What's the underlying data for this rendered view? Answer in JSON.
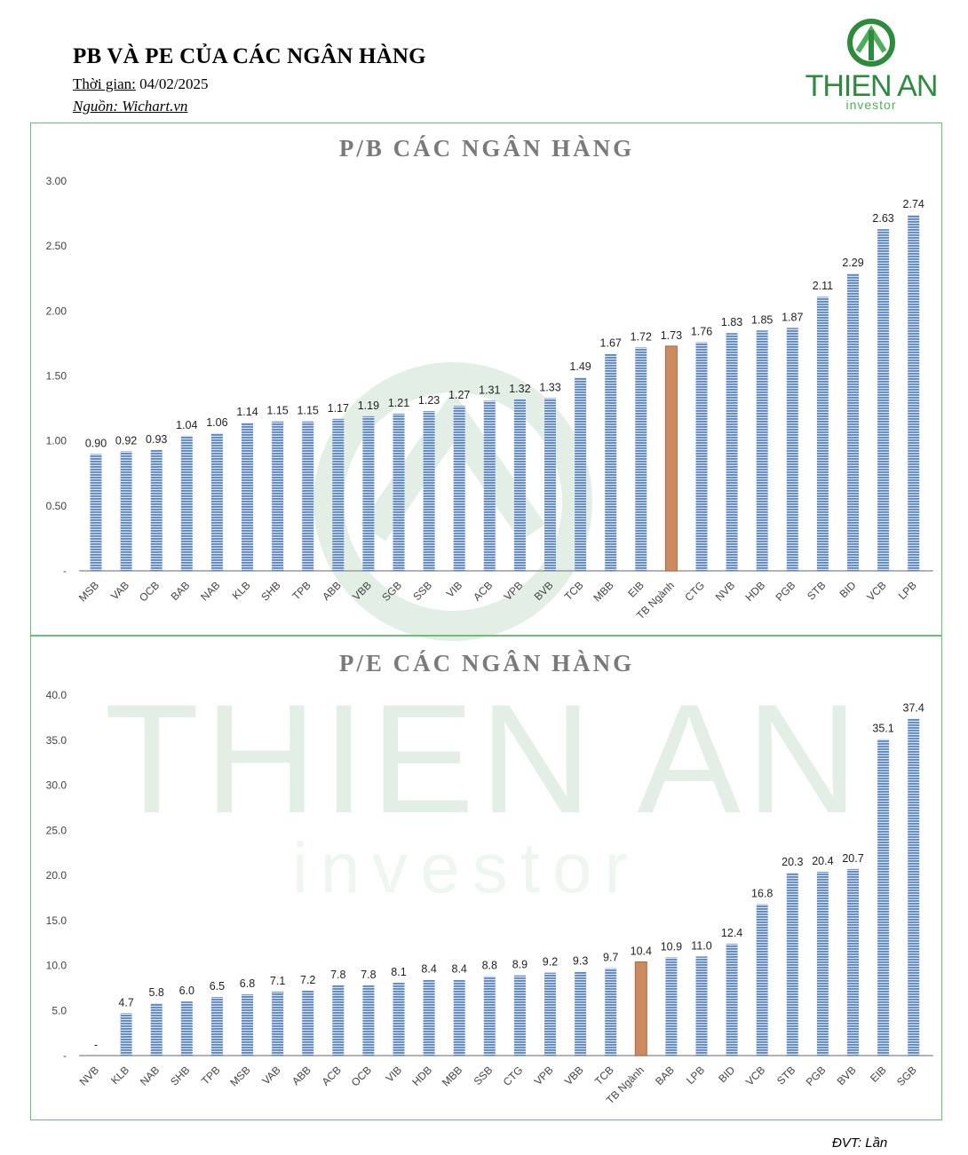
{
  "header": {
    "title": "PB VÀ PE CỦA CÁC NGÂN HÀNG",
    "time_label": "Thời gian:",
    "time_value": "04/02/2025",
    "source_label": "Nguồn:",
    "source_value": "Wichart.vn"
  },
  "logo": {
    "word": "THIEN AN",
    "sub": "investor"
  },
  "watermark": {
    "word": "THIEN AN",
    "sub": "investor"
  },
  "footer": {
    "unit": "ĐVT: Lần"
  },
  "colors": {
    "bar": "#5b85c8",
    "highlight": "#cd8a5e",
    "frame": "#6bbf7a",
    "brand": "#2e8b3e"
  },
  "chart_data": [
    {
      "type": "bar",
      "title": "P/B CÁC NGÂN HÀNG",
      "categories": [
        "MSB",
        "VAB",
        "OCB",
        "BAB",
        "NAB",
        "KLB",
        "SHB",
        "TPB",
        "ABB",
        "VBB",
        "SGB",
        "SSB",
        "VIB",
        "ACB",
        "VPB",
        "BVB",
        "TCB",
        "MBB",
        "EIB",
        "TB Ngành",
        "CTG",
        "NVB",
        "HDB",
        "PGB",
        "STB",
        "BID",
        "VCB",
        "LPB"
      ],
      "values": [
        0.9,
        0.92,
        0.93,
        1.04,
        1.06,
        1.14,
        1.15,
        1.15,
        1.17,
        1.19,
        1.21,
        1.23,
        1.27,
        1.31,
        1.32,
        1.33,
        1.49,
        1.67,
        1.72,
        1.73,
        1.76,
        1.83,
        1.85,
        1.87,
        2.11,
        2.29,
        2.63,
        2.74
      ],
      "value_labels": [
        "0.90",
        "0.92",
        "0.93",
        "1.04",
        "1.06",
        "1.14",
        "1.15",
        "1.15",
        "1.17",
        "1.19",
        "1.21",
        "1.23",
        "1.27",
        "1.31",
        "1.32",
        "1.33",
        "1.49",
        "1.67",
        "1.72",
        "1.73",
        "1.76",
        "1.83",
        "1.85",
        "1.87",
        "2.11",
        "2.29",
        "2.63",
        "2.74"
      ],
      "highlight_category": "TB Ngành",
      "ylim": [
        0,
        3
      ],
      "y_ticks": [
        "-",
        "0.50",
        "1.00",
        "1.50",
        "2.00",
        "2.50",
        "3.00"
      ],
      "y_tick_values": [
        0,
        0.5,
        1,
        1.5,
        2,
        2.5,
        3
      ],
      "grid": false
    },
    {
      "type": "bar",
      "title": "P/E CÁC NGÂN HÀNG",
      "categories": [
        "NVB",
        "KLB",
        "NAB",
        "SHB",
        "TPB",
        "MSB",
        "VAB",
        "ABB",
        "ACB",
        "OCB",
        "VIB",
        "HDB",
        "MBB",
        "SSB",
        "CTG",
        "VPB",
        "VBB",
        "TCB",
        "TB Ngành",
        "BAB",
        "LPB",
        "BID",
        "VCB",
        "STB",
        "PGB",
        "BVB",
        "EIB",
        "SGB"
      ],
      "values": [
        0,
        4.7,
        5.8,
        6.0,
        6.5,
        6.8,
        7.1,
        7.2,
        7.8,
        7.8,
        8.1,
        8.4,
        8.4,
        8.8,
        8.9,
        9.2,
        9.3,
        9.7,
        10.4,
        10.9,
        11.0,
        12.4,
        16.8,
        20.3,
        20.4,
        20.7,
        35.1,
        37.4
      ],
      "value_labels": [
        "-",
        "4.7",
        "5.8",
        "6.0",
        "6.5",
        "6.8",
        "7.1",
        "7.2",
        "7.8",
        "7.8",
        "8.1",
        "8.4",
        "8.4",
        "8.8",
        "8.9",
        "9.2",
        "9.3",
        "9.7",
        "10.4",
        "10.9",
        "11.0",
        "12.4",
        "16.8",
        "20.3",
        "20.4",
        "20.7",
        "35.1",
        "37.4"
      ],
      "highlight_category": "TB Ngành",
      "ylim": [
        0,
        40
      ],
      "y_ticks": [
        "-",
        "5.0",
        "10.0",
        "15.0",
        "20.0",
        "25.0",
        "30.0",
        "35.0",
        "40.0"
      ],
      "y_tick_values": [
        0,
        5,
        10,
        15,
        20,
        25,
        30,
        35,
        40
      ],
      "grid": false
    }
  ]
}
